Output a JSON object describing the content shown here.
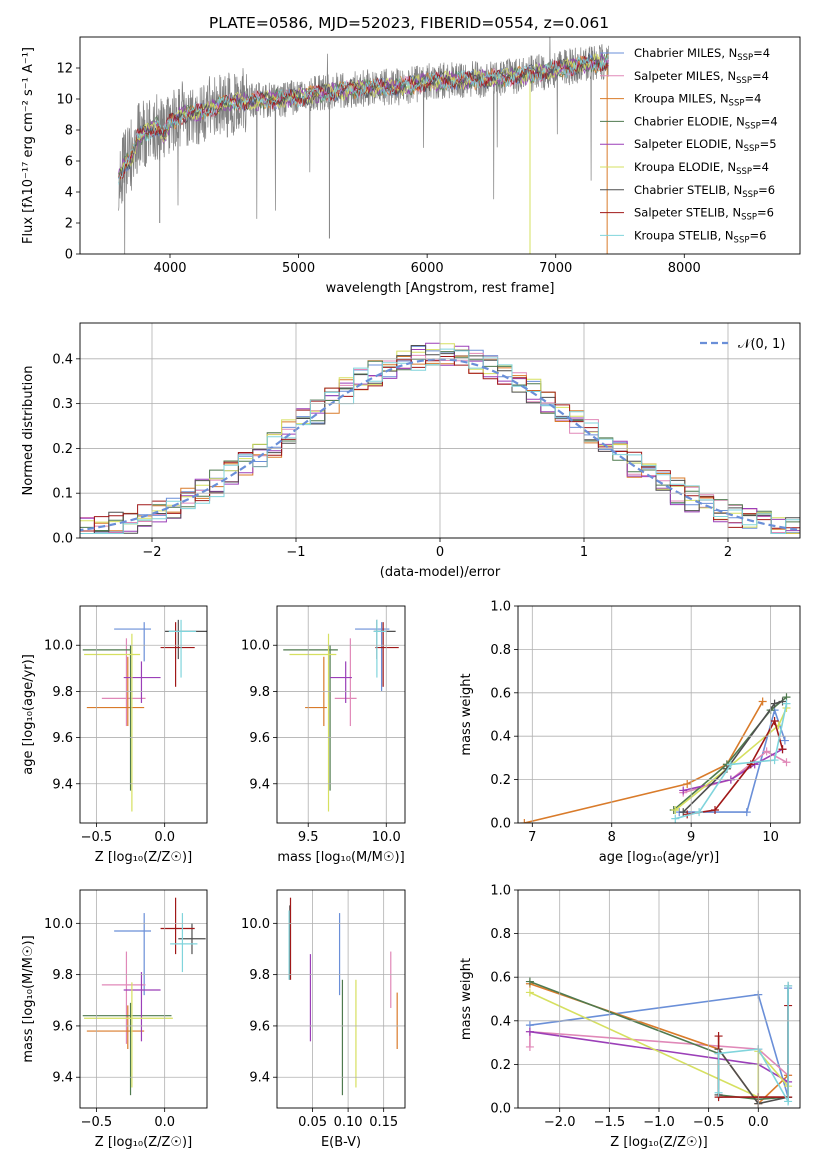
{
  "chart_data": [
    {
      "id": "spectrum",
      "type": "line",
      "title": "PLATE=0586, MJD=52023, FIBERID=0554, z=0.061",
      "xlabel": "wavelength [Angstrom, rest frame]",
      "ylabel": "Flux [fλ10⁻¹⁷ erg cm⁻² s⁻¹ A⁻¹]",
      "xlim": [
        3300,
        8900
      ],
      "ylim": [
        0,
        14
      ],
      "xticks": [
        4000,
        5000,
        6000,
        7000,
        8000
      ],
      "yticks": [
        0,
        2,
        4,
        6,
        8,
        10,
        12
      ],
      "grid": false,
      "legend_position": "top-right",
      "legend": [
        {
          "label": "Chabrier MILES, N_SSP=4",
          "color": "#6a8fd8"
        },
        {
          "label": "Salpeter MILES, N_SSP=4",
          "color": "#e088b8"
        },
        {
          "label": "Kroupa MILES, N_SSP=4",
          "color": "#d97b2a"
        },
        {
          "label": "Chabrier ELODIE, N_SSP=4",
          "color": "#4f7a4f"
        },
        {
          "label": "Salpeter ELODIE, N_SSP=5",
          "color": "#9b3fb8"
        },
        {
          "label": "Kroupa ELODIE, N_SSP=4",
          "color": "#d6e060"
        },
        {
          "label": "Chabrier STELIB, N_SSP=6",
          "color": "#4f4f4f"
        },
        {
          "label": "Salpeter STELIB, N_SSP=6",
          "color": "#a01818"
        },
        {
          "label": "Kroupa STELIB, N_SSP=6",
          "color": "#80d4dc"
        }
      ],
      "data_color": "#808080",
      "data_range": [
        3600,
        7410
      ],
      "model_curve": {
        "x": [
          3600,
          3650,
          3700,
          3750,
          3800,
          3850,
          3900,
          3950,
          4000,
          4100,
          4200,
          4300,
          4400,
          4500,
          4700,
          5000,
          5200,
          5500,
          5800,
          6000,
          6200,
          6500,
          6800,
          7000,
          7200,
          7400
        ],
        "y": [
          5.0,
          5.8,
          6.2,
          7.5,
          7.8,
          8.0,
          8.3,
          7.6,
          8.5,
          9.0,
          9.1,
          9.3,
          9.7,
          9.8,
          9.9,
          10.1,
          10.4,
          10.7,
          10.8,
          11.1,
          11.2,
          11.3,
          11.6,
          11.9,
          12.2,
          12.4
        ]
      }
    },
    {
      "id": "residuals",
      "type": "histogram",
      "xlabel": "(data-model)/error",
      "ylabel": "Normed distribution",
      "xlim": [
        -2.5,
        2.5
      ],
      "ylim": [
        0,
        0.48
      ],
      "xticks": [
        -2,
        -1,
        0,
        1,
        2
      ],
      "yticks": [
        0.0,
        0.1,
        0.2,
        0.3,
        0.4
      ],
      "grid": true,
      "legend_position": "top-right",
      "legend": [
        {
          "label": "𝒩(0, 1)",
          "color": "#6a8fd8",
          "style": "dashed"
        }
      ],
      "bin_width": 0.1
    },
    {
      "id": "age-vs-Z",
      "type": "errorbar",
      "xlabel": "Z [log₁₀(Z/Z☉)]",
      "ylabel": "age  [log₁₀(age/yr)]",
      "xlim": [
        -0.62,
        0.31
      ],
      "ylim": [
        9.23,
        10.17
      ],
      "xticks": [
        -0.5,
        0.0
      ],
      "xticklabels": [
        "−0.5",
        "0.0"
      ],
      "yticks": [
        9.4,
        9.6,
        9.8,
        10.0
      ],
      "grid": true,
      "points": [
        {
          "x": -0.15,
          "xerr": [
            0.22,
            0.05
          ],
          "y": 10.07,
          "yerr": [
            0.14,
            0.03
          ],
          "color": "#6a8fd8"
        },
        {
          "x": -0.28,
          "xerr": [
            0.18,
            0.14
          ],
          "y": 9.77,
          "yerr": [
            0.12,
            0.26
          ],
          "color": "#e088b8"
        },
        {
          "x": -0.27,
          "xerr": [
            0.3,
            0.12
          ],
          "y": 9.73,
          "yerr": [
            0.08,
            0.22
          ],
          "color": "#d97b2a"
        },
        {
          "x": -0.25,
          "xerr": [
            0.35,
            0.0
          ],
          "y": 9.98,
          "yerr": [
            0.61,
            0.02
          ],
          "color": "#4f7a4f"
        },
        {
          "x": -0.17,
          "xerr": [
            0.13,
            0.14
          ],
          "y": 9.86,
          "yerr": [
            0.11,
            0.07
          ],
          "color": "#9b3fb8"
        },
        {
          "x": -0.24,
          "xerr": [
            0.35,
            0.06
          ],
          "y": 9.96,
          "yerr": [
            0.68,
            0.09
          ],
          "color": "#d6e060"
        },
        {
          "x": 0.1,
          "xerr": [
            0.1,
            0.21
          ],
          "y": 10.06,
          "yerr": [
            0.12,
            0.05
          ],
          "color": "#4f4f4f"
        },
        {
          "x": 0.08,
          "xerr": [
            0.11,
            0.14
          ],
          "y": 9.99,
          "yerr": [
            0.17,
            0.11
          ],
          "color": "#a01818"
        },
        {
          "x": 0.12,
          "xerr": [
            0.09,
            0.11
          ],
          "y": 10.06,
          "yerr": [
            0.2,
            0.05
          ],
          "color": "#80d4dc"
        }
      ]
    },
    {
      "id": "age-vs-mass",
      "type": "errorbar",
      "xlabel": "mass [log₁₀(M/M☉)]",
      "ylabel": "",
      "xlim": [
        9.3,
        10.12
      ],
      "ylim": [
        9.23,
        10.17
      ],
      "xticks": [
        9.5,
        10.0
      ],
      "xticklabels": [
        "9.5",
        "10.0"
      ],
      "yticks": [
        9.4,
        9.6,
        9.8,
        10.0
      ],
      "grid": true,
      "points": [
        {
          "x": 9.97,
          "xerr": [
            0.17,
            0.05
          ],
          "y": 10.07,
          "yerr": [
            0.27,
            0.03
          ],
          "color": "#6a8fd8"
        },
        {
          "x": 9.77,
          "xerr": [
            0.1,
            0.04
          ],
          "y": 9.77,
          "yerr": [
            0.12,
            0.26
          ],
          "color": "#e088b8"
        },
        {
          "x": 9.6,
          "xerr": [
            0.12,
            0.02
          ],
          "y": 9.73,
          "yerr": [
            0.08,
            0.22
          ],
          "color": "#d97b2a"
        },
        {
          "x": 9.64,
          "xerr": [
            0.3,
            0.05
          ],
          "y": 9.98,
          "yerr": [
            0.61,
            0.02
          ],
          "color": "#4f7a4f"
        },
        {
          "x": 9.74,
          "xerr": [
            0.1,
            0.04
          ],
          "y": 9.86,
          "yerr": [
            0.11,
            0.07
          ],
          "color": "#9b3fb8"
        },
        {
          "x": 9.63,
          "xerr": [
            0.25,
            0.05
          ],
          "y": 9.96,
          "yerr": [
            0.68,
            0.09
          ],
          "color": "#d6e060"
        },
        {
          "x": 9.94,
          "xerr": [
            0.02,
            0.12
          ],
          "y": 10.06,
          "yerr": [
            0.12,
            0.05
          ],
          "color": "#4f4f4f"
        },
        {
          "x": 9.98,
          "xerr": [
            0.05,
            0.1
          ],
          "y": 9.99,
          "yerr": [
            0.17,
            0.11
          ],
          "color": "#a01818"
        },
        {
          "x": 9.94,
          "xerr": [
            0.02,
            0.06
          ],
          "y": 10.06,
          "yerr": [
            0.2,
            0.05
          ],
          "color": "#80d4dc"
        }
      ]
    },
    {
      "id": "mass-weight-vs-age",
      "type": "line",
      "xlabel": "age  [log₁₀(age/yr)]",
      "ylabel": "mass weight",
      "xlim": [
        6.82,
        10.37
      ],
      "ylim": [
        0,
        1
      ],
      "xticks": [
        7,
        8,
        9,
        10
      ],
      "yticks": [
        0.0,
        0.2,
        0.4,
        0.6,
        0.8,
        1.0
      ],
      "grid": true,
      "series": [
        {
          "color": "#6a8fd8",
          "x": [
            8.85,
            9.7,
            10.05,
            10.18
          ],
          "y": [
            0.05,
            0.05,
            0.52,
            0.38
          ]
        },
        {
          "color": "#e088b8",
          "x": [
            8.9,
            9.5,
            9.95,
            10.2
          ],
          "y": [
            0.14,
            0.2,
            0.33,
            0.28
          ]
        },
        {
          "color": "#d97b2a",
          "x": [
            6.9,
            8.95,
            9.45,
            9.9
          ],
          "y": [
            0.0,
            0.18,
            0.27,
            0.56
          ]
        },
        {
          "color": "#4f7a4f",
          "x": [
            8.78,
            9.45,
            10.0,
            10.2
          ],
          "y": [
            0.06,
            0.27,
            0.52,
            0.58
          ]
        },
        {
          "color": "#9b3fb8",
          "x": [
            8.9,
            9.5,
            9.8,
            10.15
          ],
          "y": [
            0.15,
            0.2,
            0.27,
            0.34
          ]
        },
        {
          "color": "#d6e060",
          "x": [
            8.8,
            9.45,
            10.1,
            10.2
          ],
          "y": [
            0.06,
            0.25,
            0.45,
            0.53
          ]
        },
        {
          "color": "#4f4f4f",
          "x": [
            8.9,
            9.45,
            10.05,
            10.15
          ],
          "y": [
            0.05,
            0.25,
            0.55,
            0.56
          ]
        },
        {
          "color": "#a01818",
          "x": [
            8.95,
            9.3,
            9.75,
            10.05,
            10.15
          ],
          "y": [
            0.04,
            0.06,
            0.27,
            0.47,
            0.34
          ]
        },
        {
          "color": "#80d4dc",
          "x": [
            8.8,
            9.1,
            9.5,
            10.05,
            10.2
          ],
          "y": [
            0.02,
            0.05,
            0.27,
            0.29,
            0.55
          ]
        }
      ]
    },
    {
      "id": "mass-vs-Z",
      "type": "errorbar",
      "xlabel": "Z [log₁₀(Z/Z☉)]",
      "ylabel": "mass [log₁₀(M/M☉)]",
      "xlim": [
        -0.62,
        0.31
      ],
      "ylim": [
        9.28,
        10.13
      ],
      "xticks": [
        -0.5,
        0.0
      ],
      "xticklabels": [
        "−0.5",
        "0.0"
      ],
      "yticks": [
        9.4,
        9.6,
        9.8,
        10.0
      ],
      "grid": true,
      "points": [
        {
          "x": -0.15,
          "xerr": [
            0.22,
            0.05
          ],
          "y": 9.97,
          "yerr": [
            0.25,
            0.07
          ],
          "color": "#6a8fd8"
        },
        {
          "x": -0.28,
          "xerr": [
            0.18,
            0.14
          ],
          "y": 9.76,
          "yerr": [
            0.23,
            0.13
          ],
          "color": "#e088b8"
        },
        {
          "x": -0.27,
          "xerr": [
            0.3,
            0.12
          ],
          "y": 9.58,
          "yerr": [
            0.07,
            0.1
          ],
          "color": "#d97b2a"
        },
        {
          "x": -0.25,
          "xerr": [
            0.35,
            0.3
          ],
          "y": 9.64,
          "yerr": [
            0.31,
            0.05
          ],
          "color": "#4f7a4f"
        },
        {
          "x": -0.17,
          "xerr": [
            0.13,
            0.14
          ],
          "y": 9.74,
          "yerr": [
            0.2,
            0.07
          ],
          "color": "#9b3fb8"
        },
        {
          "x": -0.24,
          "xerr": [
            0.35,
            0.3
          ],
          "y": 9.63,
          "yerr": [
            0.27,
            0.14
          ],
          "color": "#d6e060"
        },
        {
          "x": 0.2,
          "xerr": [
            0.1,
            0.1
          ],
          "y": 9.94,
          "yerr": [
            0.06,
            0.06
          ],
          "color": "#4f4f4f"
        },
        {
          "x": 0.08,
          "xerr": [
            0.11,
            0.14
          ],
          "y": 9.98,
          "yerr": [
            0.1,
            0.12
          ],
          "color": "#a01818"
        },
        {
          "x": 0.13,
          "xerr": [
            0.09,
            0.11
          ],
          "y": 9.92,
          "yerr": [
            0.11,
            0.12
          ],
          "color": "#80d4dc"
        }
      ]
    },
    {
      "id": "mass-vs-ebv",
      "type": "errorbar",
      "xlabel": "E(B-V)",
      "ylabel": "",
      "xlim": [
        0.0,
        0.18
      ],
      "ylim": [
        9.28,
        10.13
      ],
      "xticks": [
        0.05,
        0.1,
        0.15
      ],
      "xticklabels": [
        "0.05",
        "0.10",
        "0.15"
      ],
      "yticks": [
        9.4,
        9.6,
        9.8,
        10.0
      ],
      "grid": true,
      "points": [
        {
          "x": 0.088,
          "xerr": [
            0,
            0
          ],
          "y": 9.88,
          "yerr": [
            0.16,
            0.16
          ],
          "color": "#6a8fd8"
        },
        {
          "x": 0.16,
          "xerr": [
            0,
            0
          ],
          "y": 9.78,
          "yerr": [
            0.11,
            0.11
          ],
          "color": "#e088b8"
        },
        {
          "x": 0.169,
          "xerr": [
            0,
            0
          ],
          "y": 9.58,
          "yerr": [
            0.07,
            0.15
          ],
          "color": "#d97b2a"
        },
        {
          "x": 0.092,
          "xerr": [
            0,
            0
          ],
          "y": 9.58,
          "yerr": [
            0.25,
            0.2
          ],
          "color": "#4f7a4f"
        },
        {
          "x": 0.047,
          "xerr": [
            0,
            0
          ],
          "y": 9.74,
          "yerr": [
            0.2,
            0.14
          ],
          "color": "#9b3fb8"
        },
        {
          "x": 0.111,
          "xerr": [
            0,
            0
          ],
          "y": 9.57,
          "yerr": [
            0.21,
            0.21
          ],
          "color": "#d6e060"
        },
        {
          "x": 0.018,
          "xerr": [
            0,
            0
          ],
          "y": 9.94,
          "yerr": [
            0.16,
            0.13
          ],
          "color": "#4f4f4f"
        },
        {
          "x": 0.019,
          "xerr": [
            0,
            0
          ],
          "y": 9.98,
          "yerr": [
            0.2,
            0.12
          ],
          "color": "#a01818"
        },
        {
          "x": 0.017,
          "xerr": [
            0,
            0
          ],
          "y": 9.93,
          "yerr": [
            0.15,
            0.12
          ],
          "color": "#80d4dc"
        }
      ]
    },
    {
      "id": "mass-weight-vs-Z",
      "type": "line",
      "xlabel": "Z [log₁₀(Z/Z☉)]",
      "ylabel": "mass weight",
      "xlim": [
        -2.42,
        0.42
      ],
      "ylim": [
        0,
        1
      ],
      "xticks": [
        -2.0,
        -1.5,
        -1.0,
        -0.5,
        0.0
      ],
      "xticklabels": [
        "−2.0",
        "−1.5",
        "−1.0",
        "−0.5",
        "0.0"
      ],
      "yticks": [
        0.0,
        0.2,
        0.4,
        0.6,
        0.8,
        1.0
      ],
      "grid": true,
      "series": [
        {
          "color": "#6a8fd8",
          "x": [
            -2.3,
            0.0,
            0.3,
            0.3
          ],
          "y": [
            0.38,
            0.52,
            0.05,
            0.55
          ]
        },
        {
          "color": "#e088b8",
          "x": [
            -2.3,
            -2.3,
            0.0,
            0.3
          ],
          "y": [
            0.28,
            0.35,
            0.27,
            0.15
          ]
        },
        {
          "color": "#d97b2a",
          "x": [
            -2.3,
            -0.4,
            0.0,
            0.3
          ],
          "y": [
            0.57,
            0.27,
            0.02,
            0.15
          ]
        },
        {
          "color": "#4f7a4f",
          "x": [
            -2.3,
            -0.4,
            -0.4,
            0.0,
            0.3
          ],
          "y": [
            0.58,
            0.25,
            0.06,
            0.04,
            0.05
          ]
        },
        {
          "color": "#9b3fb8",
          "x": [
            -2.3,
            0.0,
            0.3
          ],
          "y": [
            0.35,
            0.2,
            0.12
          ]
        },
        {
          "color": "#d6e060",
          "x": [
            -2.3,
            0.0,
            0.0,
            0.3
          ],
          "y": [
            0.53,
            0.05,
            0.26,
            0.1
          ]
        },
        {
          "color": "#4f4f4f",
          "x": [
            -0.4,
            -0.4,
            0.0,
            0.3,
            0.3
          ],
          "y": [
            0.06,
            0.27,
            0.02,
            0.05,
            0.56
          ]
        },
        {
          "color": "#a01818",
          "x": [
            -0.4,
            -0.4,
            0.0,
            0.3,
            0.3
          ],
          "y": [
            0.33,
            0.05,
            0.05,
            0.05,
            0.47
          ]
        },
        {
          "color": "#80d4dc",
          "x": [
            -0.4,
            -0.4,
            0.0,
            0.3,
            0.3
          ],
          "y": [
            0.07,
            0.25,
            0.27,
            0.03,
            0.56
          ]
        }
      ]
    }
  ]
}
